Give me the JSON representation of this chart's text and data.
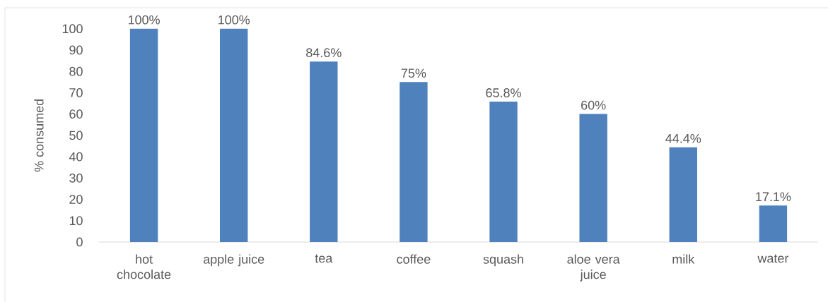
{
  "chart_data": {
    "type": "bar",
    "ylabel": "% consumed",
    "categories": [
      "hot chocolate",
      "apple juice",
      "tea",
      "coffee",
      "squash",
      "aloe vera juice",
      "milk",
      "water"
    ],
    "values": [
      100,
      100,
      84.6,
      75,
      65.8,
      60,
      44.4,
      17.1
    ],
    "color": "#4f81bd",
    "value_labels": [
      "100%",
      "100%",
      "84.6%",
      "75%",
      "65.8%",
      "60%",
      "44.4%",
      "17.1%"
    ],
    "ylim": [
      0,
      100
    ],
    "yticks": [
      0,
      10,
      20,
      30,
      40,
      50,
      60,
      70,
      80,
      90,
      100
    ]
  }
}
